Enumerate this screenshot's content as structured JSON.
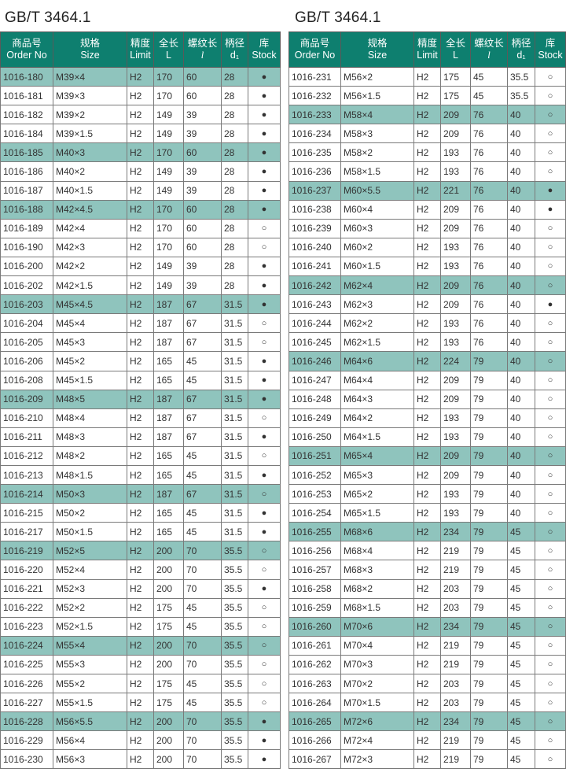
{
  "left": {
    "title": "GB/T 3464.1",
    "headers": [
      {
        "cn": "商品号",
        "en": "Order No"
      },
      {
        "cn": "规格",
        "en": "Size"
      },
      {
        "cn": "精度",
        "en": "Limit"
      },
      {
        "cn": "全长",
        "en": "L"
      },
      {
        "cn": "螺纹长",
        "en": "l"
      },
      {
        "cn": "柄径",
        "en": "d₁"
      },
      {
        "cn": "库",
        "en": "Stock"
      }
    ],
    "rows": [
      [
        "1016-180",
        "M39×4",
        "H2",
        "170",
        "60",
        "28",
        "●",
        1
      ],
      [
        "1016-181",
        "M39×3",
        "H2",
        "170",
        "60",
        "28",
        "●",
        0
      ],
      [
        "1016-182",
        "M39×2",
        "H2",
        "149",
        "39",
        "28",
        "●",
        0
      ],
      [
        "1016-184",
        "M39×1.5",
        "H2",
        "149",
        "39",
        "28",
        "●",
        0
      ],
      [
        "1016-185",
        "M40×3",
        "H2",
        "170",
        "60",
        "28",
        "●",
        1
      ],
      [
        "1016-186",
        "M40×2",
        "H2",
        "149",
        "39",
        "28",
        "●",
        0
      ],
      [
        "1016-187",
        "M40×1.5",
        "H2",
        "149",
        "39",
        "28",
        "●",
        0
      ],
      [
        "1016-188",
        "M42×4.5",
        "H2",
        "170",
        "60",
        "28",
        "●",
        1
      ],
      [
        "1016-189",
        "M42×4",
        "H2",
        "170",
        "60",
        "28",
        "○",
        0
      ],
      [
        "1016-190",
        "M42×3",
        "H2",
        "170",
        "60",
        "28",
        "○",
        0
      ],
      [
        "1016-200",
        "M42×2",
        "H2",
        "149",
        "39",
        "28",
        "●",
        0
      ],
      [
        "1016-202",
        "M42×1.5",
        "H2",
        "149",
        "39",
        "28",
        "●",
        0
      ],
      [
        "1016-203",
        "M45×4.5",
        "H2",
        "187",
        "67",
        "31.5",
        "●",
        1
      ],
      [
        "1016-204",
        "M45×4",
        "H2",
        "187",
        "67",
        "31.5",
        "○",
        0
      ],
      [
        "1016-205",
        "M45×3",
        "H2",
        "187",
        "67",
        "31.5",
        "○",
        0
      ],
      [
        "1016-206",
        "M45×2",
        "H2",
        "165",
        "45",
        "31.5",
        "●",
        0
      ],
      [
        "1016-208",
        "M45×1.5",
        "H2",
        "165",
        "45",
        "31.5",
        "●",
        0
      ],
      [
        "1016-209",
        "M48×5",
        "H2",
        "187",
        "67",
        "31.5",
        "●",
        1
      ],
      [
        "1016-210",
        "M48×4",
        "H2",
        "187",
        "67",
        "31.5",
        "○",
        0
      ],
      [
        "1016-211",
        "M48×3",
        "H2",
        "187",
        "67",
        "31.5",
        "●",
        0
      ],
      [
        "1016-212",
        "M48×2",
        "H2",
        "165",
        "45",
        "31.5",
        "○",
        0
      ],
      [
        "1016-213",
        "M48×1.5",
        "H2",
        "165",
        "45",
        "31.5",
        "●",
        0
      ],
      [
        "1016-214",
        "M50×3",
        "H2",
        "187",
        "67",
        "31.5",
        "○",
        1
      ],
      [
        "1016-215",
        "M50×2",
        "H2",
        "165",
        "45",
        "31.5",
        "●",
        0
      ],
      [
        "1016-217",
        "M50×1.5",
        "H2",
        "165",
        "45",
        "31.5",
        "●",
        0
      ],
      [
        "1016-219",
        "M52×5",
        "H2",
        "200",
        "70",
        "35.5",
        "○",
        1
      ],
      [
        "1016-220",
        "M52×4",
        "H2",
        "200",
        "70",
        "35.5",
        "○",
        0
      ],
      [
        "1016-221",
        "M52×3",
        "H2",
        "200",
        "70",
        "35.5",
        "●",
        0
      ],
      [
        "1016-222",
        "M52×2",
        "H2",
        "175",
        "45",
        "35.5",
        "○",
        0
      ],
      [
        "1016-223",
        "M52×1.5",
        "H2",
        "175",
        "45",
        "35.5",
        "○",
        0
      ],
      [
        "1016-224",
        "M55×4",
        "H2",
        "200",
        "70",
        "35.5",
        "○",
        1
      ],
      [
        "1016-225",
        "M55×3",
        "H2",
        "200",
        "70",
        "35.5",
        "○",
        0
      ],
      [
        "1016-226",
        "M55×2",
        "H2",
        "175",
        "45",
        "35.5",
        "○",
        0
      ],
      [
        "1016-227",
        "M55×1.5",
        "H2",
        "175",
        "45",
        "35.5",
        "○",
        0
      ],
      [
        "1016-228",
        "M56×5.5",
        "H2",
        "200",
        "70",
        "35.5",
        "●",
        1
      ],
      [
        "1016-229",
        "M56×4",
        "H2",
        "200",
        "70",
        "35.5",
        "●",
        0
      ],
      [
        "1016-230",
        "M56×3",
        "H2",
        "200",
        "70",
        "35.5",
        "●",
        0
      ]
    ]
  },
  "right": {
    "title": "GB/T 3464.1",
    "headers": [
      {
        "cn": "商品号",
        "en": "Order No"
      },
      {
        "cn": "规格",
        "en": "Size"
      },
      {
        "cn": "精度",
        "en": "Limit"
      },
      {
        "cn": "全长",
        "en": "L"
      },
      {
        "cn": "螺纹长",
        "en": "l"
      },
      {
        "cn": "柄径",
        "en": "d₁"
      },
      {
        "cn": "库",
        "en": "Stock"
      }
    ],
    "rows": [
      [
        "1016-231",
        "M56×2",
        "H2",
        "175",
        "45",
        "35.5",
        "○",
        0
      ],
      [
        "1016-232",
        "M56×1.5",
        "H2",
        "175",
        "45",
        "35.5",
        "○",
        0
      ],
      [
        "1016-233",
        "M58×4",
        "H2",
        "209",
        "76",
        "40",
        "○",
        1
      ],
      [
        "1016-234",
        "M58×3",
        "H2",
        "209",
        "76",
        "40",
        "○",
        0
      ],
      [
        "1016-235",
        "M58×2",
        "H2",
        "193",
        "76",
        "40",
        "○",
        0
      ],
      [
        "1016-236",
        "M58×1.5",
        "H2",
        "193",
        "76",
        "40",
        "○",
        0
      ],
      [
        "1016-237",
        "M60×5.5",
        "H2",
        "221",
        "76",
        "40",
        "●",
        1
      ],
      [
        "1016-238",
        "M60×4",
        "H2",
        "209",
        "76",
        "40",
        "●",
        0
      ],
      [
        "1016-239",
        "M60×3",
        "H2",
        "209",
        "76",
        "40",
        "○",
        0
      ],
      [
        "1016-240",
        "M60×2",
        "H2",
        "193",
        "76",
        "40",
        "○",
        0
      ],
      [
        "1016-241",
        "M60×1.5",
        "H2",
        "193",
        "76",
        "40",
        "○",
        0
      ],
      [
        "1016-242",
        "M62×4",
        "H2",
        "209",
        "76",
        "40",
        "○",
        1
      ],
      [
        "1016-243",
        "M62×3",
        "H2",
        "209",
        "76",
        "40",
        "●",
        0
      ],
      [
        "1016-244",
        "M62×2",
        "H2",
        "193",
        "76",
        "40",
        "○",
        0
      ],
      [
        "1016-245",
        "M62×1.5",
        "H2",
        "193",
        "76",
        "40",
        "○",
        0
      ],
      [
        "1016-246",
        "M64×6",
        "H2",
        "224",
        "79",
        "40",
        "○",
        1
      ],
      [
        "1016-247",
        "M64×4",
        "H2",
        "209",
        "79",
        "40",
        "○",
        0
      ],
      [
        "1016-248",
        "M64×3",
        "H2",
        "209",
        "79",
        "40",
        "○",
        0
      ],
      [
        "1016-249",
        "M64×2",
        "H2",
        "193",
        "79",
        "40",
        "○",
        0
      ],
      [
        "1016-250",
        "M64×1.5",
        "H2",
        "193",
        "79",
        "40",
        "○",
        0
      ],
      [
        "1016-251",
        "M65×4",
        "H2",
        "209",
        "79",
        "40",
        "○",
        1
      ],
      [
        "1016-252",
        "M65×3",
        "H2",
        "209",
        "79",
        "40",
        "○",
        0
      ],
      [
        "1016-253",
        "M65×2",
        "H2",
        "193",
        "79",
        "40",
        "○",
        0
      ],
      [
        "1016-254",
        "M65×1.5",
        "H2",
        "193",
        "79",
        "40",
        "○",
        0
      ],
      [
        "1016-255",
        "M68×6",
        "H2",
        "234",
        "79",
        "45",
        "○",
        1
      ],
      [
        "1016-256",
        "M68×4",
        "H2",
        "219",
        "79",
        "45",
        "○",
        0
      ],
      [
        "1016-257",
        "M68×3",
        "H2",
        "219",
        "79",
        "45",
        "○",
        0
      ],
      [
        "1016-258",
        "M68×2",
        "H2",
        "203",
        "79",
        "45",
        "○",
        0
      ],
      [
        "1016-259",
        "M68×1.5",
        "H2",
        "203",
        "79",
        "45",
        "○",
        0
      ],
      [
        "1016-260",
        "M70×6",
        "H2",
        "234",
        "79",
        "45",
        "○",
        1
      ],
      [
        "1016-261",
        "M70×4",
        "H2",
        "219",
        "79",
        "45",
        "○",
        0
      ],
      [
        "1016-262",
        "M70×3",
        "H2",
        "219",
        "79",
        "45",
        "○",
        0
      ],
      [
        "1016-263",
        "M70×2",
        "H2",
        "203",
        "79",
        "45",
        "○",
        0
      ],
      [
        "1016-264",
        "M70×1.5",
        "H2",
        "203",
        "79",
        "45",
        "○",
        0
      ],
      [
        "1016-265",
        "M72×6",
        "H2",
        "234",
        "79",
        "45",
        "○",
        1
      ],
      [
        "1016-266",
        "M72×4",
        "H2",
        "219",
        "79",
        "45",
        "○",
        0
      ],
      [
        "1016-267",
        "M72×3",
        "H2",
        "219",
        "79",
        "45",
        "○",
        0
      ]
    ]
  },
  "colors": {
    "header": "#0e7f6f",
    "highlight": "#8fc4bd"
  }
}
